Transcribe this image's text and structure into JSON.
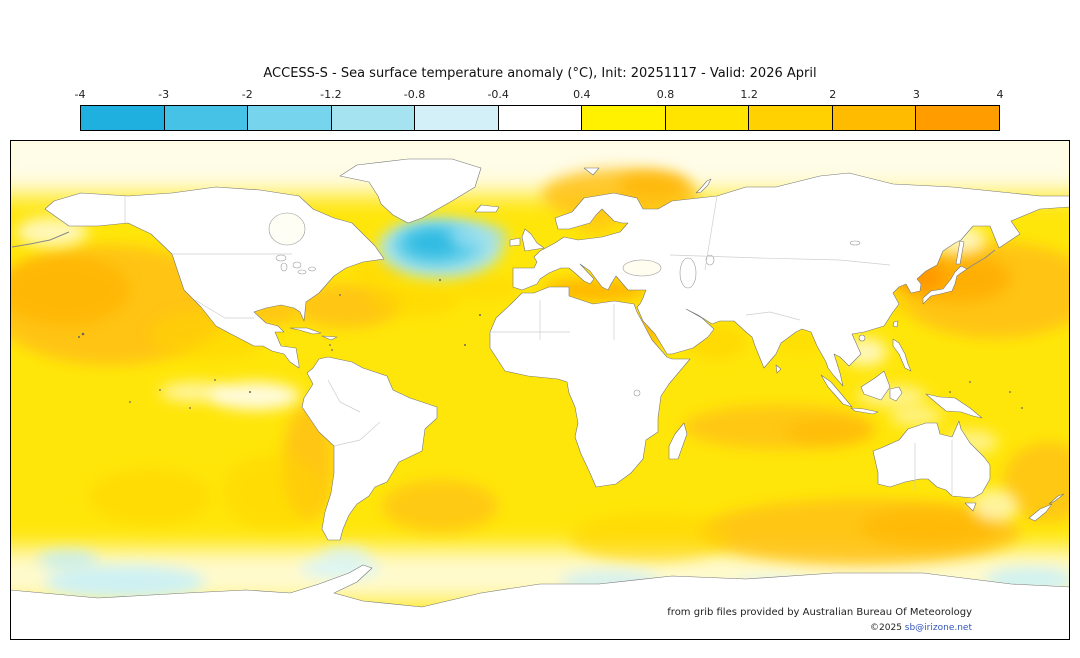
{
  "title": "ACCESS-S - Sea surface temperature anomaly (°C), Init: 20251117 - Valid: 2026 April",
  "colorbar": {
    "units": "°C",
    "tick_labels": [
      "-4",
      "-3",
      "-2",
      "-1.2",
      "-0.8",
      "-0.4",
      "0.4",
      "0.8",
      "1.2",
      "2",
      "3",
      "4"
    ],
    "segment_colors": [
      "#1fb0e0",
      "#45c2e6",
      "#76d4ec",
      "#a6e3f1",
      "#d3f0f8",
      "#ffffff",
      "#fff100",
      "#ffe400",
      "#ffd100",
      "#ffbb00",
      "#ff9c00"
    ]
  },
  "credits": {
    "source_line": "from grib files provided by Australian Bureau Of Meteorology",
    "copyright_prefix": "©2025 ",
    "copyright_link": "sb@irizone.net"
  },
  "chart_data": {
    "type": "heatmap",
    "title": "ACCESS-S - Sea surface temperature anomaly (°C), Init: 20251117 - Valid: 2026 April",
    "model": "ACCESS-S",
    "variable": "Sea surface temperature anomaly",
    "units": "°C",
    "init_date": "20251117",
    "valid_date": "2026 April",
    "projection": "equirectangular world map",
    "extent": {
      "lon": [
        -180,
        180
      ],
      "lat": [
        -90,
        90
      ]
    },
    "colorbar_levels": [
      -4,
      -3,
      -2,
      -1.2,
      -0.8,
      -0.4,
      0.4,
      0.8,
      1.2,
      2,
      3,
      4
    ],
    "colorbar_colors": [
      "#1fb0e0",
      "#45c2e6",
      "#76d4ec",
      "#a6e3f1",
      "#d3f0f8",
      "#ffffff",
      "#fff100",
      "#ffe400",
      "#ffd100",
      "#ffbb00",
      "#ff9c00"
    ],
    "legend_position": "top",
    "grid": false,
    "notable_anomalies": [
      {
        "region": "North Atlantic south of Greenland (cold blob)",
        "anomaly_c": -2.5
      },
      {
        "region": "Northwest Pacific east of Japan",
        "anomaly_c": 2
      },
      {
        "region": "Sea of Japan / around Japan",
        "anomaly_c": 3
      },
      {
        "region": "Central and Northeast North Pacific",
        "anomaly_c": 1.5
      },
      {
        "region": "Mediterranean Sea",
        "anomaly_c": 1.5
      },
      {
        "region": "Norwegian and Barents Seas",
        "anomaly_c": 1.2
      },
      {
        "region": "Gulf of Mexico and western North Atlantic subtropics",
        "anomaly_c": 1.2
      },
      {
        "region": "Red Sea and Arabian Sea margins",
        "anomaly_c": 1.2
      },
      {
        "region": "Tropical south Indian Ocean band",
        "anomaly_c": 1
      },
      {
        "region": "Southern Ocean south of Australia",
        "anomaly_c": 1.5
      },
      {
        "region": "Peru-Chile coastal Pacific",
        "anomaly_c": 1.2
      },
      {
        "region": "Southwest Atlantic near Argentina",
        "anomaly_c": 1
      },
      {
        "region": "Most of the remaining global ocean",
        "anomaly_c": 0.6
      },
      {
        "region": "Scattered patches near Antarctica",
        "anomaly_c": -0.6
      },
      {
        "region": "Equatorial eastern Pacific patches",
        "anomaly_c": 0
      }
    ]
  }
}
